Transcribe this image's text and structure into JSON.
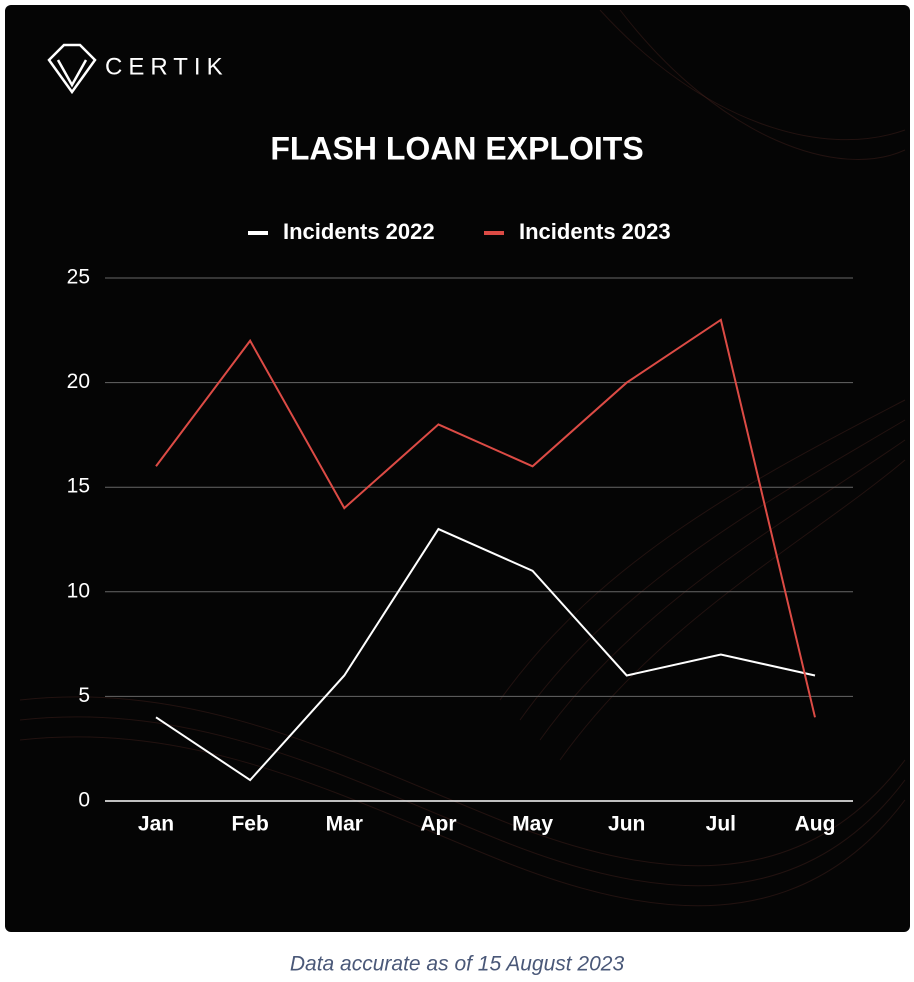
{
  "brand": "CERTIK",
  "caption": "Data accurate as of 15 August 2023",
  "chart_data": {
    "type": "line",
    "title": "FLASH LOAN EXPLOITS",
    "categories": [
      "Jan",
      "Feb",
      "Mar",
      "Apr",
      "May",
      "Jun",
      "Jul",
      "Aug"
    ],
    "series": [
      {
        "name": "Incidents 2022",
        "color": "#ffffff",
        "values": [
          4,
          1,
          6,
          13,
          11,
          6,
          7,
          6
        ]
      },
      {
        "name": "Incidents 2023",
        "color": "#dc4b45",
        "values": [
          16,
          22,
          14,
          18,
          16,
          20,
          23,
          4
        ]
      }
    ],
    "ylim": [
      0,
      25
    ],
    "yticks": [
      0,
      5,
      10,
      15,
      20,
      25
    ],
    "grid": true,
    "legend": "top"
  }
}
